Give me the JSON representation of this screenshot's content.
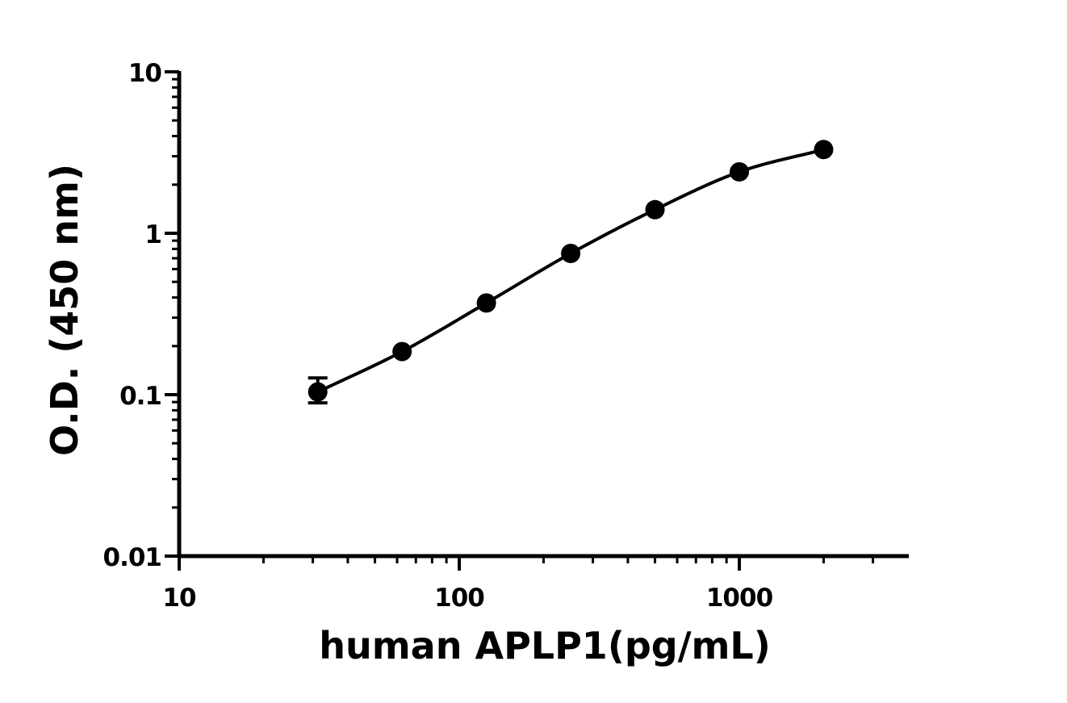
{
  "chart_data": {
    "type": "scatter",
    "title": "",
    "xlabel": "human APLP1(pg/mL)",
    "ylabel": "O.D. (450 nm)",
    "x_scale": "log",
    "y_scale": "log",
    "xlim": [
      10,
      3500
    ],
    "ylim": [
      0.01,
      10
    ],
    "x_ticks": [
      10,
      100,
      1000
    ],
    "x_tick_labels": [
      "10",
      "100",
      "1000"
    ],
    "y_ticks": [
      0.01,
      0.1,
      1,
      10
    ],
    "y_tick_labels": [
      "0.01",
      "0.1",
      "1",
      "10"
    ],
    "grid": false,
    "legend": "none",
    "series": [
      {
        "x": [
          31.25,
          62.5,
          125,
          250,
          500,
          1000,
          2000
        ],
        "y": [
          0.104,
          0.185,
          0.37,
          0.75,
          1.4,
          2.4,
          3.3
        ],
        "error_low": [
          0.089,
          null,
          null,
          null,
          null,
          null,
          null
        ],
        "error_high": [
          0.127,
          null,
          null,
          null,
          null,
          null,
          null
        ],
        "fit": "4PL curve",
        "color": "#000000"
      }
    ]
  }
}
